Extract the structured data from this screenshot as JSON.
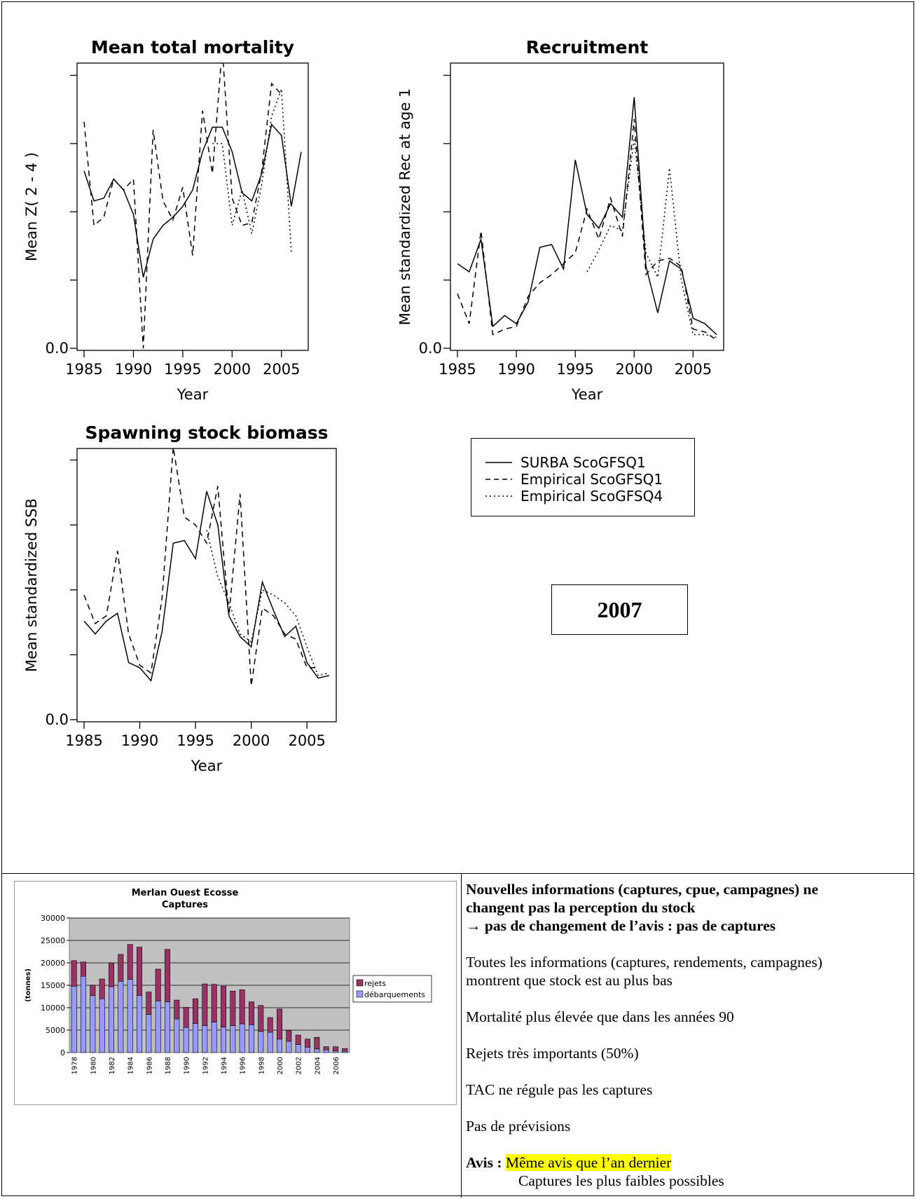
{
  "year_box": "2007",
  "legend": {
    "entries": [
      {
        "label": "SURBA ScoGFSQ1",
        "style": "solid"
      },
      {
        "label": "Empirical ScoGFSQ1",
        "style": "dashed"
      },
      {
        "label": "Empirical ScoGFSQ4",
        "style": "dotted"
      }
    ]
  },
  "chart_data": [
    {
      "type": "line",
      "title": "Mean total mortality",
      "xlabel": "Year",
      "ylabel": "Mean Z( 2 - 4 )",
      "xlim": [
        1985,
        2007
      ],
      "ylim": [
        0,
        1
      ],
      "x_ticks": [
        "1985",
        "1990",
        "1995",
        "2000",
        "2005"
      ],
      "y_ticks": [
        "0.0"
      ],
      "x": [
        1985,
        1986,
        1987,
        1988,
        1989,
        1990,
        1991,
        1992,
        1993,
        1994,
        1995,
        1996,
        1997,
        1998,
        1999,
        2000,
        2001,
        2002,
        2003,
        2004,
        2005,
        2006,
        2007
      ],
      "series": [
        {
          "name": "SURBA ScoGFSQ1",
          "style": "solid",
          "values": [
            0.65,
            0.54,
            0.55,
            0.62,
            0.58,
            0.49,
            0.26,
            0.4,
            0.45,
            0.48,
            0.52,
            0.58,
            0.72,
            0.81,
            0.81,
            0.72,
            0.57,
            0.54,
            0.64,
            0.82,
            0.78,
            0.52,
            0.72
          ]
        },
        {
          "name": "Empirical ScoGFSQ1",
          "style": "dashed",
          "values": [
            0.83,
            0.45,
            0.48,
            0.62,
            0.58,
            0.62,
            0.0,
            0.8,
            0.54,
            0.47,
            0.59,
            0.34,
            0.87,
            0.64,
            1.1,
            0.55,
            0.45,
            0.46,
            0.65,
            0.97,
            0.93,
            null,
            null
          ]
        },
        {
          "name": "Empirical ScoGFSQ4",
          "style": "dotted",
          "values": [
            null,
            null,
            null,
            null,
            null,
            null,
            null,
            null,
            null,
            null,
            null,
            null,
            null,
            0.75,
            0.75,
            0.45,
            0.58,
            0.42,
            0.6,
            0.85,
            0.95,
            0.35,
            null
          ]
        }
      ]
    },
    {
      "type": "line",
      "title": "Recruitment",
      "xlabel": "Year",
      "ylabel": "Mean standardized Rec at age 1",
      "xlim": [
        1985,
        2007
      ],
      "ylim": [
        0,
        1
      ],
      "x_ticks": [
        "1985",
        "1990",
        "1995",
        "2000",
        "2005"
      ],
      "y_ticks": [
        "0.0"
      ],
      "x": [
        1985,
        1986,
        1987,
        1988,
        1989,
        1990,
        1991,
        1992,
        1993,
        1994,
        1995,
        1996,
        1997,
        1998,
        1999,
        2000,
        2001,
        2002,
        2003,
        2004,
        2005,
        2006,
        2007
      ],
      "series": [
        {
          "name": "SURBA ScoGFSQ1",
          "style": "solid",
          "values": [
            0.31,
            0.28,
            0.4,
            0.08,
            0.12,
            0.09,
            0.17,
            0.37,
            0.38,
            0.29,
            0.69,
            0.49,
            0.44,
            0.53,
            0.48,
            0.92,
            0.3,
            0.13,
            0.32,
            0.29,
            0.11,
            0.09,
            0.05
          ]
        },
        {
          "name": "Empirical ScoGFSQ1",
          "style": "dashed",
          "values": [
            0.2,
            0.09,
            0.43,
            0.05,
            0.07,
            0.08,
            0.19,
            0.24,
            0.27,
            0.31,
            0.35,
            0.51,
            0.4,
            0.55,
            0.41,
            0.84,
            0.27,
            0.32,
            0.33,
            0.3,
            0.07,
            0.06,
            0.03
          ]
        },
        {
          "name": "Empirical ScoGFSQ4",
          "style": "dotted",
          "values": [
            null,
            null,
            null,
            null,
            null,
            null,
            null,
            null,
            null,
            null,
            null,
            0.28,
            0.36,
            0.45,
            0.43,
            0.77,
            0.35,
            0.26,
            0.66,
            0.25,
            0.05,
            0.05,
            0.04
          ]
        }
      ]
    },
    {
      "type": "line",
      "title": "Spawning stock biomass",
      "xlabel": "Year",
      "ylabel": "Mean standardized SSB",
      "xlim": [
        1985,
        2007
      ],
      "ylim": [
        0,
        1
      ],
      "x_ticks": [
        "1985",
        "1990",
        "1995",
        "2000",
        "2005"
      ],
      "y_ticks": [
        "0.0"
      ],
      "x": [
        1985,
        1986,
        1987,
        1988,
        1989,
        1990,
        1991,
        1992,
        1993,
        1994,
        1995,
        1996,
        1997,
        1998,
        1999,
        2000,
        2001,
        2002,
        2003,
        2004,
        2005,
        2006,
        2007
      ],
      "series": [
        {
          "name": "SURBA ScoGFSQ1",
          "style": "solid",
          "values": [
            0.38,
            0.33,
            0.38,
            0.41,
            0.22,
            0.2,
            0.15,
            0.34,
            0.68,
            0.69,
            0.62,
            0.88,
            0.75,
            0.4,
            0.32,
            0.28,
            0.53,
            0.42,
            0.32,
            0.36,
            0.22,
            0.16,
            0.17
          ]
        },
        {
          "name": "Empirical ScoGFSQ1",
          "style": "dashed",
          "values": [
            0.48,
            0.37,
            0.4,
            0.65,
            0.33,
            0.21,
            0.18,
            0.47,
            1.05,
            0.78,
            0.75,
            0.68,
            0.9,
            0.4,
            0.87,
            0.13,
            0.43,
            0.4,
            0.33,
            0.31,
            0.2,
            0.2,
            null
          ]
        },
        {
          "name": "Empirical ScoGFSQ4",
          "style": "dotted",
          "values": [
            null,
            null,
            null,
            null,
            null,
            null,
            null,
            null,
            null,
            null,
            null,
            0.73,
            0.55,
            0.45,
            0.33,
            0.3,
            0.5,
            0.48,
            0.45,
            0.4,
            0.28,
            0.17,
            0.18
          ]
        }
      ]
    },
    {
      "type": "bar",
      "stacked": true,
      "title": "Merlan Ouest Ecosse",
      "subtitle": "Captures",
      "xlabel": "",
      "ylabel": "(tonnes)",
      "ylim": [
        0,
        30000
      ],
      "y_ticks": [
        "0",
        "5000",
        "10000",
        "15000",
        "20000",
        "25000",
        "30000"
      ],
      "categories": [
        "1978",
        "1979",
        "1980",
        "1981",
        "1982",
        "1983",
        "1984",
        "1985",
        "1986",
        "1987",
        "1988",
        "1989",
        "1990",
        "1991",
        "1992",
        "1993",
        "1994",
        "1995",
        "1996",
        "1997",
        "1998",
        "1999",
        "2000",
        "2001",
        "2002",
        "2003",
        "2004",
        "2005",
        "2006",
        "2007"
      ],
      "x_tick_labels": [
        "1978",
        "1980",
        "1982",
        "1984",
        "1986",
        "1988",
        "1990",
        "1992",
        "1994",
        "1996",
        "1998",
        "2000",
        "2002",
        "2004",
        "2006"
      ],
      "legend_position": "right",
      "series": [
        {
          "name": "débarquements",
          "color": "#9999ff",
          "values": [
            14800,
            17000,
            12700,
            12000,
            14700,
            15900,
            16300,
            12700,
            8500,
            11500,
            11300,
            7500,
            5600,
            6500,
            6000,
            6800,
            5700,
            6000,
            6400,
            6200,
            4700,
            4500,
            3000,
            2500,
            1800,
            1200,
            800,
            600,
            400,
            300
          ]
        },
        {
          "name": "rejets",
          "color": "#993366",
          "values": [
            5700,
            3200,
            2300,
            4400,
            5300,
            6000,
            7800,
            10800,
            5000,
            7100,
            11700,
            4200,
            4500,
            5500,
            9300,
            8400,
            9100,
            7700,
            7600,
            5100,
            5800,
            3300,
            6700,
            2400,
            2100,
            1800,
            2600,
            700,
            900,
            600
          ]
        }
      ]
    }
  ],
  "notes": {
    "headline_line1": "Nouvelles informations (captures, cpue, campagnes) ne",
    "headline_line2": "changent pas la perception du stock",
    "headline_arrow": "→",
    "headline_line3": "pas de changement de l’avis : pas de captures",
    "p1_line1": "Toutes les informations (captures, rendements, campagnes)",
    "p1_line2": "montrent que stock est au plus bas",
    "p2": "Mortalité plus élevée que dans les années 90",
    "p3": "Rejets très importants (50%)",
    "p4": "TAC ne régule pas les captures",
    "p5": "Pas de prévisions",
    "avis_label": "Avis :",
    "avis_value": "Même avis que l’an dernier",
    "avis_line2": "Captures les plus faibles possibles"
  }
}
